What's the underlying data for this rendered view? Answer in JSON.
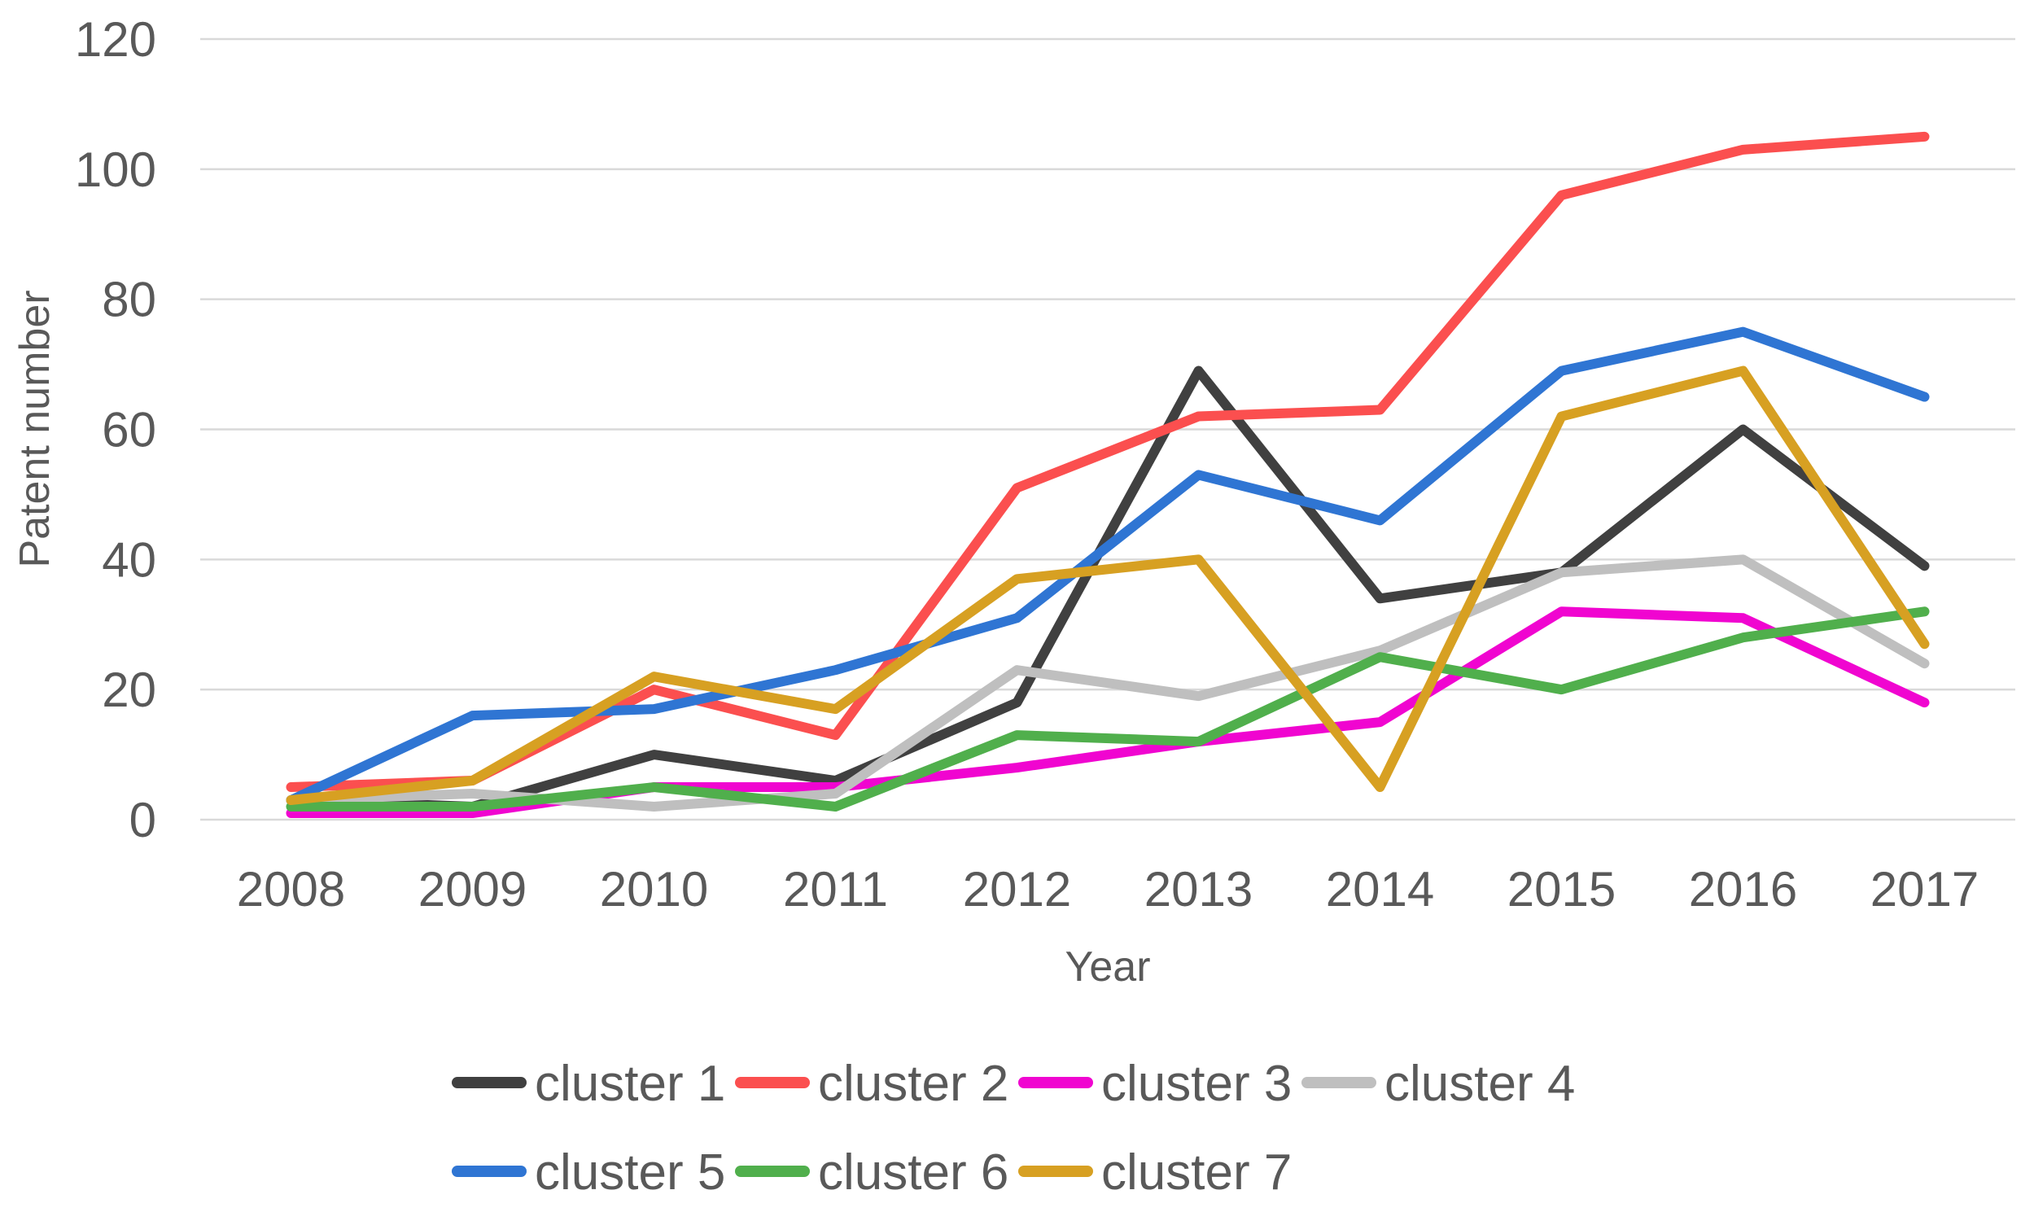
{
  "figure": {
    "background": "#ffffff",
    "text_color": "#595959",
    "gridline_color": "#d9d9d9"
  },
  "chart_data": {
    "type": "line",
    "title": "",
    "xlabel": "Year",
    "ylabel": "Patent number",
    "categories": [
      "2008",
      "2009",
      "2010",
      "2011",
      "2012",
      "2013",
      "2014",
      "2015",
      "2016",
      "2017"
    ],
    "series": [
      {
        "name": "cluster 1",
        "color": "#404040",
        "values": [
          3,
          2,
          10,
          6,
          18,
          69,
          34,
          38,
          60,
          39
        ]
      },
      {
        "name": "cluster 2",
        "color": "#FB4F4F",
        "values": [
          5,
          6,
          20,
          13,
          51,
          62,
          63,
          96,
          103,
          105
        ]
      },
      {
        "name": "cluster 3",
        "color": "#F005D0",
        "values": [
          1,
          1,
          5,
          5,
          8,
          12,
          15,
          32,
          31,
          18
        ]
      },
      {
        "name": "cluster 4",
        "color": "#BFBFBF",
        "values": [
          3,
          4,
          2,
          4,
          23,
          19,
          26,
          38,
          40,
          24
        ]
      },
      {
        "name": "cluster 5",
        "color": "#2F75D3",
        "values": [
          3,
          16,
          17,
          23,
          31,
          53,
          46,
          69,
          75,
          65
        ]
      },
      {
        "name": "cluster 6",
        "color": "#50AF4C",
        "values": [
          2,
          2,
          5,
          2,
          13,
          12,
          25,
          20,
          28,
          32
        ]
      },
      {
        "name": "cluster 7",
        "color": "#D7A022",
        "values": [
          3,
          6,
          22,
          17,
          37,
          40,
          5,
          62,
          69,
          27
        ]
      }
    ],
    "ylim": [
      0,
      120
    ],
    "yticks": [
      0,
      20,
      40,
      60,
      80,
      100,
      120
    ],
    "grid": "horizontal",
    "legend_position": "bottom",
    "legend_rows": [
      [
        "cluster 1",
        "cluster 2",
        "cluster 3",
        "cluster 4"
      ],
      [
        "cluster 5",
        "cluster 6",
        "cluster 7"
      ]
    ]
  }
}
